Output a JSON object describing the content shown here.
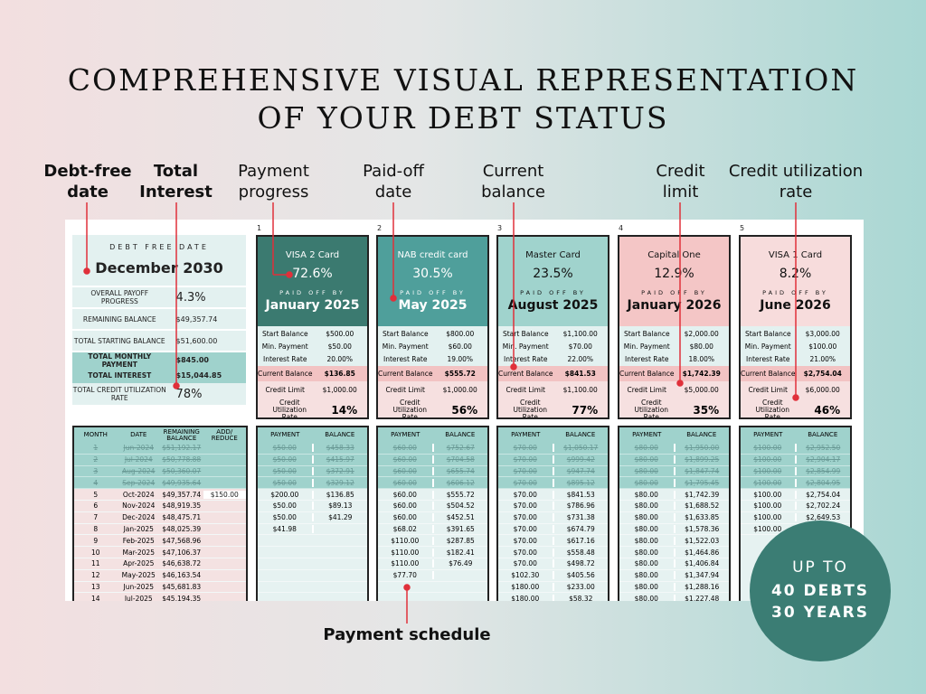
{
  "title": [
    "COMPREHENSIVE VISUAL REPRESENTATION",
    "OF YOUR DEBT STATUS"
  ],
  "annotations": {
    "debt_free": "Debt-free date",
    "total_interest": "Total Interest",
    "payment_progress": "Payment progress",
    "paid_off_date": "Paid-off date",
    "current_balance": "Current balance",
    "credit_limit": "Credit limit",
    "credit_util": "Credit utilization rate",
    "payment_schedule": "Payment schedule"
  },
  "annotation_color": "#e0303a",
  "summary": {
    "debt_free_label": "DEBT FREE DATE",
    "debt_free_date": "December 2030",
    "rows": [
      {
        "k": "Overall payoff progress",
        "v": "4.3%"
      },
      {
        "k": "Remaining balance",
        "v": "$49,357.74"
      },
      {
        "k": "Total starting balance",
        "v": "$51,600.00"
      },
      {
        "k": "Total monthly payment",
        "v": "$845.00"
      },
      {
        "k": "Total interest",
        "v": "$15,044.85"
      },
      {
        "k": "Total credit utilization rate",
        "v": "78%"
      }
    ]
  },
  "card_labels": {
    "paid_off_by": "PAID OFF BY",
    "start": "Start Balance",
    "min": "Min. Payment",
    "rate": "Interest Rate",
    "current": "Current Balance",
    "limit": "Credit Limit",
    "util": "Credit Utilization Rate",
    "payment": "PAYMENT",
    "balance": "BALANCE"
  },
  "cards": [
    {
      "num": "1",
      "name": "VISA 2 Card",
      "progress": "72.6%",
      "paid_off": "January 2025",
      "start": "$500.00",
      "min": "$50.00",
      "rate": "20.00%",
      "current": "$136.85",
      "limit": "$1,000.00",
      "util": "14%",
      "color": "#3b7a70",
      "text": "#ffffff",
      "schedule": [
        [
          "$50.00",
          "$458.33"
        ],
        [
          "$50.00",
          "$415.97"
        ],
        [
          "$50.00",
          "$372.91"
        ],
        [
          "$50.00",
          "$329.12"
        ],
        [
          "$200.00",
          "$136.85"
        ],
        [
          "$50.00",
          "$89.13"
        ],
        [
          "$50.00",
          "$41.29"
        ],
        [
          "$41.98",
          ""
        ],
        [
          "",
          ""
        ],
        [
          "",
          ""
        ],
        [
          "",
          ""
        ],
        [
          "",
          ""
        ],
        [
          "",
          ""
        ],
        [
          "",
          ""
        ]
      ]
    },
    {
      "num": "2",
      "name": "NAB credit card",
      "progress": "30.5%",
      "paid_off": "May 2025",
      "start": "$800.00",
      "min": "$60.00",
      "rate": "19.00%",
      "current": "$555.72",
      "limit": "$1,000.00",
      "util": "56%",
      "color": "#4f9f9b",
      "text": "#ffffff",
      "schedule": [
        [
          "$60.00",
          "$752.67"
        ],
        [
          "$60.00",
          "$704.58"
        ],
        [
          "$60.00",
          "$655.74"
        ],
        [
          "$60.00",
          "$606.12"
        ],
        [
          "$60.00",
          "$555.72"
        ],
        [
          "$60.00",
          "$504.52"
        ],
        [
          "$60.00",
          "$452.51"
        ],
        [
          "$68.02",
          "$391.65"
        ],
        [
          "$110.00",
          "$287.85"
        ],
        [
          "$110.00",
          "$182.41"
        ],
        [
          "$110.00",
          "$76.49"
        ],
        [
          "$77.70",
          ""
        ],
        [
          "",
          ""
        ],
        [
          "",
          ""
        ]
      ]
    },
    {
      "num": "3",
      "name": "Master Card",
      "progress": "23.5%",
      "paid_off": "August 2025",
      "start": "$1,100.00",
      "min": "$70.00",
      "rate": "22.00%",
      "current": "$841.53",
      "limit": "$1,100.00",
      "util": "77%",
      "color": "#a0d3cd",
      "text": "#111111",
      "schedule": [
        [
          "$70.00",
          "$1,050.17"
        ],
        [
          "$70.00",
          "$999.42"
        ],
        [
          "$70.00",
          "$947.74"
        ],
        [
          "$70.00",
          "$895.12"
        ],
        [
          "$70.00",
          "$841.53"
        ],
        [
          "$70.00",
          "$786.96"
        ],
        [
          "$70.00",
          "$731.38"
        ],
        [
          "$70.00",
          "$674.79"
        ],
        [
          "$70.00",
          "$617.16"
        ],
        [
          "$70.00",
          "$558.48"
        ],
        [
          "$70.00",
          "$498.72"
        ],
        [
          "$102.30",
          "$405.56"
        ],
        [
          "$180.00",
          "$233.00"
        ],
        [
          "$180.00",
          "$58.32"
        ]
      ]
    },
    {
      "num": "4",
      "name": "Capital One",
      "progress": "12.9%",
      "paid_off": "January 2026",
      "start": "$2,000.00",
      "min": "$80.00",
      "rate": "18.00%",
      "current": "$1,742.39",
      "limit": "$5,000.00",
      "util": "35%",
      "color": "#f4c6c6",
      "text": "#111111",
      "schedule": [
        [
          "$80.00",
          "$1,950.00"
        ],
        [
          "$80.00",
          "$1,899.25"
        ],
        [
          "$80.00",
          "$1,847.74"
        ],
        [
          "$80.00",
          "$1,795.45"
        ],
        [
          "$80.00",
          "$1,742.39"
        ],
        [
          "$80.00",
          "$1,688.52"
        ],
        [
          "$80.00",
          "$1,633.85"
        ],
        [
          "$80.00",
          "$1,578.36"
        ],
        [
          "$80.00",
          "$1,522.03"
        ],
        [
          "$80.00",
          "$1,464.86"
        ],
        [
          "$80.00",
          "$1,406.84"
        ],
        [
          "$80.00",
          "$1,347.94"
        ],
        [
          "$80.00",
          "$1,288.16"
        ],
        [
          "$80.00",
          "$1,227.48"
        ]
      ]
    },
    {
      "num": "5",
      "name": "VISA 1 Card",
      "progress": "8.2%",
      "paid_off": "June 2026",
      "start": "$3,000.00",
      "min": "$100.00",
      "rate": "21.00%",
      "current": "$2,754.04",
      "limit": "$6,000.00",
      "util": "46%",
      "color": "#f7dcdc",
      "text": "#111111",
      "schedule": [
        [
          "$100.00",
          "$2,952.50"
        ],
        [
          "$100.00",
          "$2,904.17"
        ],
        [
          "$100.00",
          "$2,854.99"
        ],
        [
          "$100.00",
          "$2,804.95"
        ],
        [
          "$100.00",
          "$2,754.04"
        ],
        [
          "$100.00",
          "$2,702.24"
        ],
        [
          "$100.00",
          "$2,649.53"
        ],
        [
          "$100.00",
          ""
        ]
      ]
    }
  ],
  "main_schedule": {
    "headers": [
      "MONTH",
      "DATE",
      "REMAINING BALANCE",
      "ADD/ REDUCE"
    ],
    "rows": [
      [
        "1",
        "Jun-2024",
        "$51,192.17",
        ""
      ],
      [
        "2",
        "Jul-2024",
        "$50,778.88",
        ""
      ],
      [
        "3",
        "Aug-2024",
        "$50,360.07",
        ""
      ],
      [
        "4",
        "Sep-2024",
        "$49,935.64",
        ""
      ],
      [
        "5",
        "Oct-2024",
        "$49,357.74",
        "$150.00"
      ],
      [
        "6",
        "Nov-2024",
        "$48,919.35",
        ""
      ],
      [
        "7",
        "Dec-2024",
        "$48,475.71",
        ""
      ],
      [
        "8",
        "Jan-2025",
        "$48,025.39",
        ""
      ],
      [
        "9",
        "Feb-2025",
        "$47,568.96",
        ""
      ],
      [
        "10",
        "Mar-2025",
        "$47,106.37",
        ""
      ],
      [
        "11",
        "Apr-2025",
        "$46,638.72",
        ""
      ],
      [
        "12",
        "May-2025",
        "$46,163.54",
        ""
      ],
      [
        "13",
        "Jun-2025",
        "$45,681.83",
        ""
      ],
      [
        "14",
        "Jul-2025",
        "$45,194.35",
        ""
      ]
    ]
  },
  "past_rows": 4,
  "badge": {
    "line1": "UP TO",
    "line2": "40 DEBTS",
    "line3": "30 YEARS",
    "color": "#3b7d74"
  }
}
